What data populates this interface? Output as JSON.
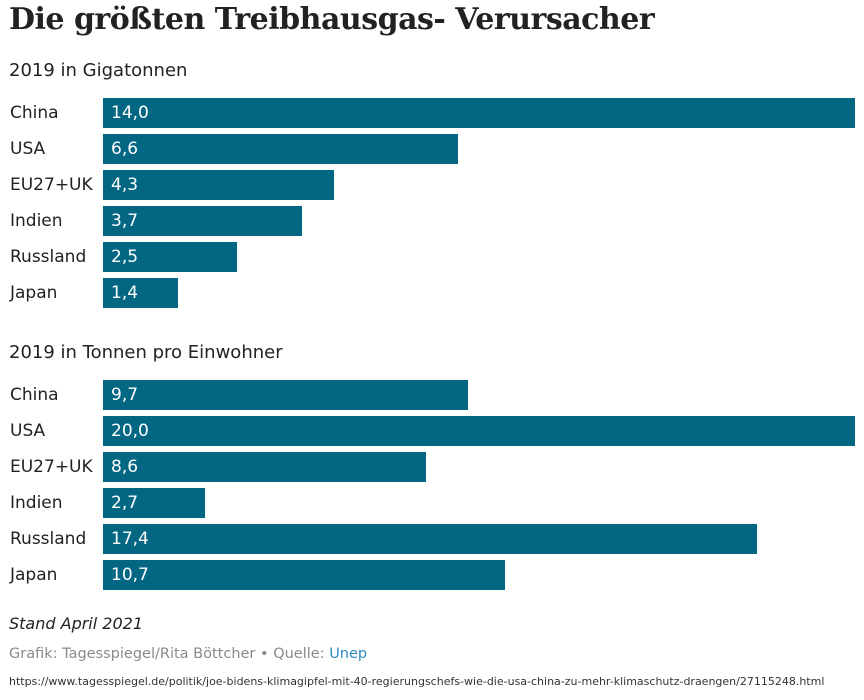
{
  "title": "Die größten Treibhausgas- Verursacher",
  "chart_data": [
    {
      "type": "bar",
      "orientation": "horizontal",
      "title": "2019 in Gigatonnen",
      "categories": [
        "China",
        "USA",
        "EU27+UK",
        "Indien",
        "Russland",
        "Japan"
      ],
      "values": [
        14.0,
        6.6,
        4.3,
        3.7,
        2.5,
        1.4
      ],
      "labels": [
        "14,0",
        "6,6",
        "4,3",
        "3,7",
        "2,5",
        "1,4"
      ],
      "xlim": [
        0,
        14.0
      ],
      "color": "#036783"
    },
    {
      "type": "bar",
      "orientation": "horizontal",
      "title": "2019 in Tonnen pro Einwohner",
      "categories": [
        "China",
        "USA",
        "EU27+UK",
        "Indien",
        "Russland",
        "Japan"
      ],
      "values": [
        9.7,
        20.0,
        8.6,
        2.7,
        17.4,
        10.7
      ],
      "labels": [
        "9,7",
        "20,0",
        "8,6",
        "2,7",
        "17,4",
        "10,7"
      ],
      "xlim": [
        0,
        20.0
      ],
      "color": "#036783"
    }
  ],
  "footer": {
    "stand": "Stand April 2021",
    "credit": "Grafik: Tagesspiegel/Rita Böttcher",
    "separator": "•",
    "source_label": "Quelle:",
    "source": "Unep",
    "url": "https://www.tagesspiegel.de/politik/joe-bidens-klimagipfel-mit-40-regierungschefs-wie-die-usa-china-zu-mehr-klimaschutz-draengen/27115248.html"
  }
}
